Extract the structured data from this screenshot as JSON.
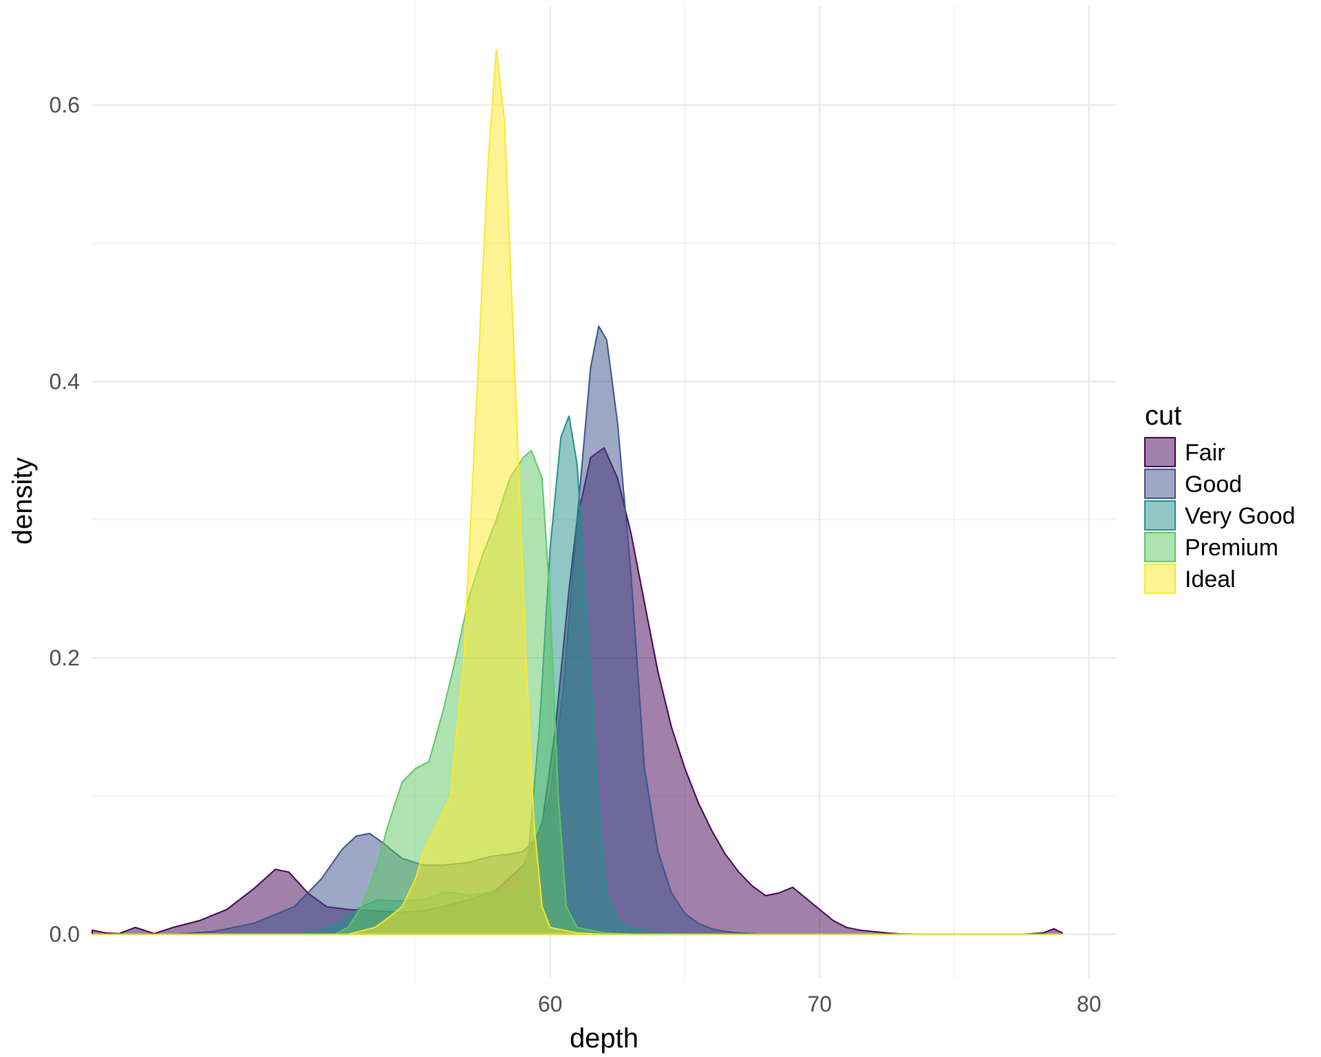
{
  "chart_data": {
    "type": "area",
    "subtype": "density",
    "title": "",
    "xlabel": "depth",
    "ylabel": "density",
    "xlim": [
      43,
      81
    ],
    "ylim": [
      -0.032,
      0.672
    ],
    "x_ticks": [
      60,
      70,
      80
    ],
    "x_tick_labels": [
      "60",
      "70",
      "80"
    ],
    "y_ticks": [
      0.0,
      0.2,
      0.4,
      0.6
    ],
    "y_tick_labels": [
      "0.0",
      "0.2",
      "0.4",
      "0.6"
    ],
    "grid": true,
    "legend": {
      "title": "cut",
      "position": "right"
    },
    "fill_alpha": 0.5,
    "series": [
      {
        "name": "Fair",
        "color": "#440154",
        "points": [
          [
            43.0,
            0.003
          ],
          [
            43.5,
            0.001
          ],
          [
            44.0,
            0.0005
          ],
          [
            44.6,
            0.005
          ],
          [
            45.3,
            0.0005
          ],
          [
            46.0,
            0.005
          ],
          [
            47.0,
            0.01
          ],
          [
            48.0,
            0.018
          ],
          [
            49.0,
            0.033
          ],
          [
            49.8,
            0.047
          ],
          [
            50.3,
            0.045
          ],
          [
            51.0,
            0.03
          ],
          [
            51.7,
            0.02
          ],
          [
            52.5,
            0.018
          ],
          [
            53.5,
            0.017
          ],
          [
            54.5,
            0.016
          ],
          [
            55.3,
            0.017
          ],
          [
            56.0,
            0.02
          ],
          [
            57.0,
            0.025
          ],
          [
            58.0,
            0.032
          ],
          [
            59.0,
            0.05
          ],
          [
            59.7,
            0.08
          ],
          [
            60.2,
            0.15
          ],
          [
            60.7,
            0.25
          ],
          [
            61.0,
            0.3
          ],
          [
            61.5,
            0.345
          ],
          [
            62.0,
            0.352
          ],
          [
            62.5,
            0.33
          ],
          [
            63.0,
            0.29
          ],
          [
            63.5,
            0.24
          ],
          [
            64.0,
            0.19
          ],
          [
            64.5,
            0.15
          ],
          [
            65.0,
            0.12
          ],
          [
            65.5,
            0.095
          ],
          [
            66.0,
            0.075
          ],
          [
            66.5,
            0.058
          ],
          [
            67.0,
            0.045
          ],
          [
            67.5,
            0.035
          ],
          [
            68.0,
            0.028
          ],
          [
            68.5,
            0.03
          ],
          [
            69.0,
            0.034
          ],
          [
            69.5,
            0.026
          ],
          [
            70.0,
            0.018
          ],
          [
            70.5,
            0.01
          ],
          [
            71.0,
            0.005
          ],
          [
            71.5,
            0.003
          ],
          [
            72.0,
            0.002
          ],
          [
            72.5,
            0.001
          ],
          [
            73.0,
            0.0003
          ],
          [
            74.0,
            0.0
          ],
          [
            76.0,
            0.0
          ],
          [
            77.5,
            0.0
          ],
          [
            78.3,
            0.001
          ],
          [
            78.7,
            0.004
          ],
          [
            79.0,
            0.001
          ]
        ]
      },
      {
        "name": "Good",
        "color": "#3b528b",
        "points": [
          [
            43.0,
            0.0
          ],
          [
            46.0,
            0.0
          ],
          [
            47.5,
            0.002
          ],
          [
            49.0,
            0.008
          ],
          [
            50.5,
            0.02
          ],
          [
            51.5,
            0.04
          ],
          [
            52.3,
            0.062
          ],
          [
            52.8,
            0.071
          ],
          [
            53.3,
            0.073
          ],
          [
            53.8,
            0.066
          ],
          [
            54.5,
            0.055
          ],
          [
            55.3,
            0.05
          ],
          [
            56.0,
            0.05
          ],
          [
            57.0,
            0.052
          ],
          [
            57.5,
            0.055
          ],
          [
            58.0,
            0.057
          ],
          [
            58.5,
            0.058
          ],
          [
            59.0,
            0.06
          ],
          [
            59.5,
            0.07
          ],
          [
            60.0,
            0.1
          ],
          [
            60.5,
            0.18
          ],
          [
            61.0,
            0.3
          ],
          [
            61.5,
            0.41
          ],
          [
            61.8,
            0.44
          ],
          [
            62.1,
            0.43
          ],
          [
            62.5,
            0.37
          ],
          [
            63.0,
            0.26
          ],
          [
            63.5,
            0.12
          ],
          [
            64.0,
            0.06
          ],
          [
            64.5,
            0.03
          ],
          [
            65.0,
            0.015
          ],
          [
            65.5,
            0.008
          ],
          [
            66.0,
            0.004
          ],
          [
            66.5,
            0.002
          ],
          [
            67.0,
            0.001
          ],
          [
            68.0,
            0.0
          ],
          [
            79.0,
            0.0
          ]
        ]
      },
      {
        "name": "Very Good",
        "color": "#21908c",
        "points": [
          [
            43.0,
            0.0
          ],
          [
            50.5,
            0.0
          ],
          [
            51.5,
            0.003
          ],
          [
            52.3,
            0.01
          ],
          [
            53.0,
            0.02
          ],
          [
            53.6,
            0.025
          ],
          [
            54.3,
            0.024
          ],
          [
            55.3,
            0.025
          ],
          [
            56.0,
            0.03
          ],
          [
            56.5,
            0.03
          ],
          [
            57.0,
            0.028
          ],
          [
            57.5,
            0.03
          ],
          [
            58.0,
            0.031
          ],
          [
            58.5,
            0.03
          ],
          [
            58.8,
            0.032
          ],
          [
            59.2,
            0.06
          ],
          [
            59.6,
            0.15
          ],
          [
            60.0,
            0.28
          ],
          [
            60.4,
            0.36
          ],
          [
            60.7,
            0.375
          ],
          [
            61.0,
            0.34
          ],
          [
            61.4,
            0.22
          ],
          [
            61.8,
            0.09
          ],
          [
            62.1,
            0.03
          ],
          [
            62.5,
            0.01
          ],
          [
            63.0,
            0.004
          ],
          [
            64.0,
            0.001
          ],
          [
            65.0,
            0.0
          ],
          [
            79.0,
            0.0
          ]
        ]
      },
      {
        "name": "Premium",
        "color": "#5dc863",
        "points": [
          [
            43.0,
            0.0
          ],
          [
            52.0,
            0.0
          ],
          [
            52.5,
            0.005
          ],
          [
            53.0,
            0.02
          ],
          [
            53.5,
            0.045
          ],
          [
            54.0,
            0.08
          ],
          [
            54.5,
            0.11
          ],
          [
            55.0,
            0.12
          ],
          [
            55.5,
            0.125
          ],
          [
            56.0,
            0.16
          ],
          [
            56.5,
            0.2
          ],
          [
            57.0,
            0.245
          ],
          [
            57.5,
            0.275
          ],
          [
            58.0,
            0.3
          ],
          [
            58.5,
            0.33
          ],
          [
            59.0,
            0.345
          ],
          [
            59.3,
            0.35
          ],
          [
            59.7,
            0.33
          ],
          [
            60.0,
            0.24
          ],
          [
            60.3,
            0.1
          ],
          [
            60.6,
            0.02
          ],
          [
            61.0,
            0.005
          ],
          [
            62.0,
            0.001
          ],
          [
            63.0,
            0.0
          ],
          [
            79.0,
            0.0
          ]
        ]
      },
      {
        "name": "Ideal",
        "color": "#fde725",
        "points": [
          [
            43.0,
            0.0
          ],
          [
            52.5,
            0.0
          ],
          [
            53.5,
            0.005
          ],
          [
            54.0,
            0.012
          ],
          [
            54.5,
            0.02
          ],
          [
            55.0,
            0.04
          ],
          [
            55.3,
            0.06
          ],
          [
            55.8,
            0.08
          ],
          [
            56.3,
            0.1
          ],
          [
            56.8,
            0.2
          ],
          [
            57.3,
            0.4
          ],
          [
            57.7,
            0.56
          ],
          [
            58.0,
            0.64
          ],
          [
            58.3,
            0.59
          ],
          [
            58.7,
            0.4
          ],
          [
            59.1,
            0.2
          ],
          [
            59.4,
            0.08
          ],
          [
            59.7,
            0.02
          ],
          [
            60.0,
            0.005
          ],
          [
            61.0,
            0.001
          ],
          [
            62.0,
            0.0
          ],
          [
            79.0,
            0.0
          ]
        ]
      }
    ]
  }
}
